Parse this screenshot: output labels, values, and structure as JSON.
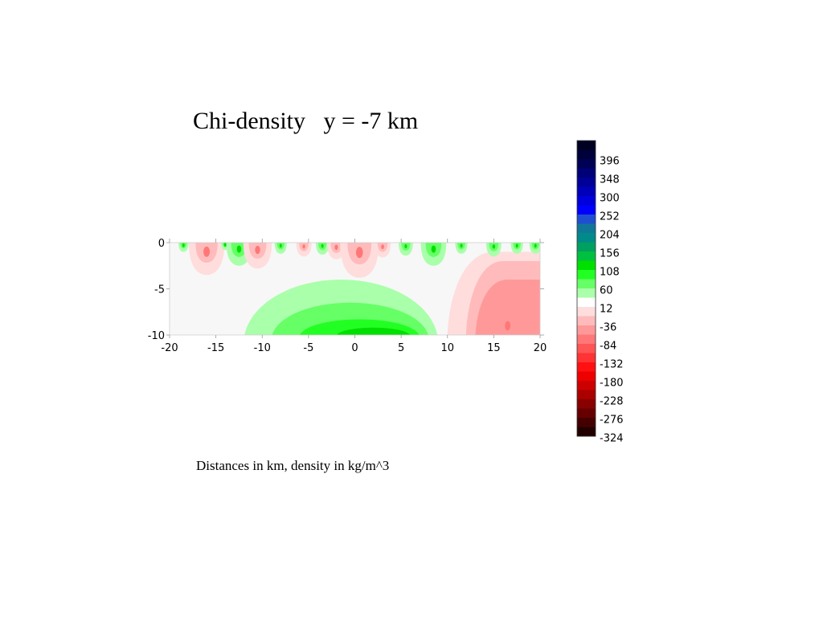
{
  "chart_data": {
    "type": "heatmap",
    "subtype": "filled-contour",
    "title": "Chi-density   y = -7 km",
    "caption": "Distances in km, density in kg/m^3",
    "x_ticks": [
      -20,
      -15,
      -10,
      -5,
      0,
      5,
      10,
      15,
      20
    ],
    "y_ticks": [
      0,
      -5,
      -10
    ],
    "xlim": [
      -20,
      20
    ],
    "ylim": [
      -10,
      0
    ],
    "colorbar": {
      "position": "right",
      "labels": [
        "396",
        "348",
        "300",
        "252",
        "204",
        "156",
        "108",
        "60",
        "12",
        "-36",
        "-84",
        "-132",
        "-180",
        "-228",
        "-276",
        "-324"
      ],
      "levels_top_to_bottom": [
        {
          "value": 420,
          "color": "#000022"
        },
        {
          "value": 396,
          "color": "#00003a"
        },
        {
          "value": 372,
          "color": "#000055"
        },
        {
          "value": 348,
          "color": "#000077"
        },
        {
          "value": 324,
          "color": "#000099"
        },
        {
          "value": 300,
          "color": "#0000bb"
        },
        {
          "value": 276,
          "color": "#0000dd"
        },
        {
          "value": 252,
          "color": "#0000ff"
        },
        {
          "value": 228,
          "color": "#1f4fd0"
        },
        {
          "value": 204,
          "color": "#117799"
        },
        {
          "value": 180,
          "color": "#008a8a"
        },
        {
          "value": 156,
          "color": "#00a060"
        },
        {
          "value": 132,
          "color": "#00c040"
        },
        {
          "value": 108,
          "color": "#00e000"
        },
        {
          "value": 84,
          "color": "#22ff22"
        },
        {
          "value": 60,
          "color": "#66ff66"
        },
        {
          "value": 36,
          "color": "#aaffaa"
        },
        {
          "value": 12,
          "color": "#ffffff"
        },
        {
          "value": -12,
          "color": "#ffdddd"
        },
        {
          "value": -36,
          "color": "#ffbbbb"
        },
        {
          "value": -60,
          "color": "#ff9999"
        },
        {
          "value": -84,
          "color": "#ff7777"
        },
        {
          "value": -108,
          "color": "#ff5555"
        },
        {
          "value": -132,
          "color": "#ff3333"
        },
        {
          "value": -156,
          "color": "#ff1111"
        },
        {
          "value": -180,
          "color": "#ee0000"
        },
        {
          "value": -204,
          "color": "#cc0000"
        },
        {
          "value": -228,
          "color": "#aa0000"
        },
        {
          "value": -252,
          "color": "#880000"
        },
        {
          "value": -276,
          "color": "#660000"
        },
        {
          "value": -300,
          "color": "#440000"
        },
        {
          "value": -324,
          "color": "#220000"
        }
      ]
    },
    "regions": [
      {
        "id": "bg",
        "level": 12,
        "desc": "near-zero background"
      },
      {
        "id": "green-outer",
        "level": 36,
        "x_range": [
          -12,
          9
        ],
        "y_range": [
          -10,
          -4
        ]
      },
      {
        "id": "green-mid",
        "level": 60,
        "x_range": [
          -9,
          8
        ],
        "y_range": [
          -10,
          -6.5
        ]
      },
      {
        "id": "green-inner",
        "level": 84,
        "x_range": [
          -6,
          7
        ],
        "y_range": [
          -10,
          -8.3
        ]
      },
      {
        "id": "green-core",
        "level": 108,
        "x_range": [
          -2,
          6
        ],
        "y_range": [
          -10,
          -9.2
        ]
      },
      {
        "id": "red-outer",
        "level": -12,
        "x_range": [
          10,
          20
        ],
        "y_range": [
          -10,
          -1
        ]
      },
      {
        "id": "red-mid",
        "level": -36,
        "x_range": [
          12,
          20
        ],
        "y_range": [
          -10,
          -2
        ]
      },
      {
        "id": "red-inner",
        "level": -60,
        "x_range": [
          13,
          20
        ],
        "y_range": [
          -10,
          -4
        ]
      },
      {
        "id": "red-core",
        "level": -84,
        "x_range": [
          16,
          17
        ],
        "y_range": [
          -9.5,
          -8.5
        ]
      }
    ],
    "surface_anomalies": [
      {
        "x": -18.5,
        "sign": "+",
        "depth": -1.0
      },
      {
        "x": -16.0,
        "sign": "-",
        "depth": -3.5
      },
      {
        "x": -14.0,
        "sign": "+",
        "depth": -0.8
      },
      {
        "x": -12.5,
        "sign": "+",
        "depth": -2.5
      },
      {
        "x": -10.5,
        "sign": "-",
        "depth": -2.8
      },
      {
        "x": -8.0,
        "sign": "+",
        "depth": -1.2
      },
      {
        "x": -5.5,
        "sign": "-",
        "depth": -1.5
      },
      {
        "x": -3.5,
        "sign": "+",
        "depth": -1.3
      },
      {
        "x": -2.0,
        "sign": "-",
        "depth": -1.8
      },
      {
        "x": 0.5,
        "sign": "-",
        "depth": -3.8
      },
      {
        "x": 3.0,
        "sign": "-",
        "depth": -1.6
      },
      {
        "x": 5.5,
        "sign": "+",
        "depth": -1.4
      },
      {
        "x": 8.5,
        "sign": "+",
        "depth": -2.5
      },
      {
        "x": 11.5,
        "sign": "+",
        "depth": -1.2
      },
      {
        "x": 15.0,
        "sign": "+",
        "depth": -1.5
      },
      {
        "x": 17.5,
        "sign": "+",
        "depth": -1.2
      },
      {
        "x": 19.5,
        "sign": "+",
        "depth": -1.2
      }
    ],
    "grid": false
  }
}
